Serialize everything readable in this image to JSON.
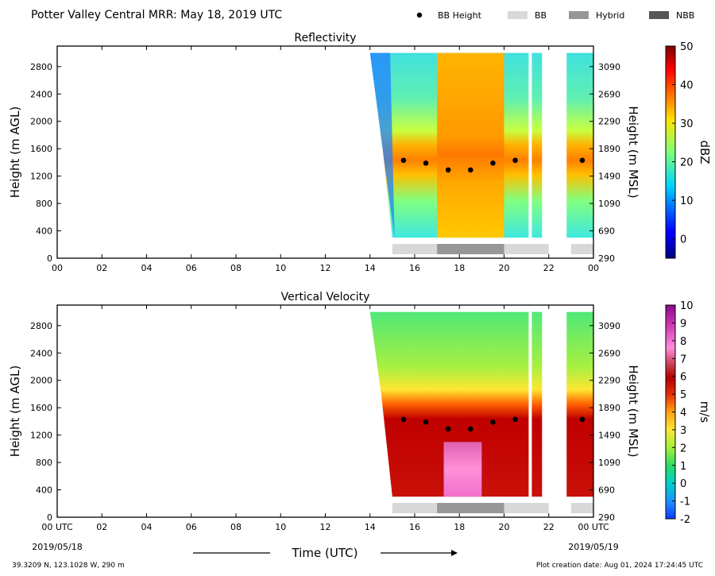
{
  "header": {
    "title": "Potter Valley Central MRR:  May 18, 2019 UTC",
    "legend": [
      {
        "label": "BB Height",
        "kind": "dot",
        "color": "#000000"
      },
      {
        "label": "BB",
        "kind": "box",
        "color": "#d8d8d8"
      },
      {
        "label": "Hybrid",
        "kind": "box",
        "color": "#979797"
      },
      {
        "label": "NBB",
        "kind": "box",
        "color": "#575757"
      }
    ]
  },
  "footer": {
    "location": "39.3209 N, 123.1028 W, 290 m",
    "creation": "Plot creation date: Aug 01, 2024 17:24:45 UTC",
    "xlabel": "Time (UTC)",
    "start_date": "2019/05/18",
    "end_date": "2019/05/19"
  },
  "chart_data": [
    {
      "type": "heatmap",
      "title": "Reflectivity",
      "ylabel": "Height (m AGL)",
      "ylabel_right": "Height (m MSL)",
      "colorbar_label": "dBZ",
      "xlim": [
        0,
        24
      ],
      "ylim": [
        0,
        3100
      ],
      "xticks": [
        "00",
        "02",
        "04",
        "06",
        "08",
        "10",
        "12",
        "14",
        "16",
        "18",
        "20",
        "22",
        "00"
      ],
      "yticks": [
        "0",
        "400",
        "800",
        "1200",
        "1600",
        "2000",
        "2400",
        "2800"
      ],
      "yticks_right": [
        "290",
        "690",
        "1090",
        "1490",
        "1890",
        "2290",
        "2690",
        "3090"
      ],
      "colorbar": {
        "min": -5,
        "max": 50,
        "ticks": [
          "0",
          "10",
          "20",
          "30",
          "40",
          "50"
        ],
        "tick_values": [
          0,
          10,
          20,
          30,
          40,
          50
        ]
      },
      "data_spans": [
        [
          14.0,
          21.7
        ],
        [
          22.8,
          24.0
        ]
      ],
      "bb_height_points": [
        {
          "x": 15.5,
          "y": 1430
        },
        {
          "x": 16.5,
          "y": 1390
        },
        {
          "x": 17.5,
          "y": 1290
        },
        {
          "x": 18.5,
          "y": 1290
        },
        {
          "x": 19.5,
          "y": 1390
        },
        {
          "x": 20.5,
          "y": 1430
        },
        {
          "x": 23.5,
          "y": 1430
        }
      ],
      "bb_type_bars": [
        {
          "start": 15.0,
          "end": 17.0,
          "type": "BB"
        },
        {
          "start": 17.0,
          "end": 20.0,
          "type": "Hybrid"
        },
        {
          "start": 20.0,
          "end": 22.0,
          "type": "BB"
        },
        {
          "start": 23.0,
          "end": 24.0,
          "type": "BB"
        }
      ]
    },
    {
      "type": "heatmap",
      "title": "Vertical Velocity",
      "ylabel": "Height (m AGL)",
      "ylabel_right": "Height (m MSL)",
      "colorbar_label": "m/s",
      "xlim": [
        0,
        24
      ],
      "ylim": [
        0,
        3100
      ],
      "xticks": [
        "00 UTC",
        "02",
        "04",
        "06",
        "08",
        "10",
        "12",
        "14",
        "16",
        "18",
        "20",
        "22",
        "00 UTC"
      ],
      "yticks": [
        "0",
        "400",
        "800",
        "1200",
        "1600",
        "2000",
        "2400",
        "2800"
      ],
      "yticks_right": [
        "290",
        "690",
        "1090",
        "1490",
        "1890",
        "2290",
        "2690",
        "3090"
      ],
      "colorbar": {
        "min": -2,
        "max": 10,
        "ticks": [
          "-2",
          "-1",
          "0",
          "1",
          "2",
          "3",
          "4",
          "5",
          "6",
          "7",
          "8",
          "9",
          "10"
        ],
        "tick_values": [
          -2,
          -1,
          0,
          1,
          2,
          3,
          4,
          5,
          6,
          7,
          8,
          9,
          10
        ]
      },
      "data_spans": [
        [
          14.0,
          21.7
        ],
        [
          22.8,
          24.0
        ]
      ],
      "bb_height_points": [
        {
          "x": 15.5,
          "y": 1430
        },
        {
          "x": 16.5,
          "y": 1390
        },
        {
          "x": 17.5,
          "y": 1290
        },
        {
          "x": 18.5,
          "y": 1290
        },
        {
          "x": 19.5,
          "y": 1390
        },
        {
          "x": 20.5,
          "y": 1430
        },
        {
          "x": 23.5,
          "y": 1430
        }
      ],
      "bb_type_bars": [
        {
          "start": 15.0,
          "end": 17.0,
          "type": "BB"
        },
        {
          "start": 17.0,
          "end": 20.0,
          "type": "Hybrid"
        },
        {
          "start": 20.0,
          "end": 22.0,
          "type": "BB"
        },
        {
          "start": 23.0,
          "end": 24.0,
          "type": "BB"
        }
      ]
    }
  ]
}
